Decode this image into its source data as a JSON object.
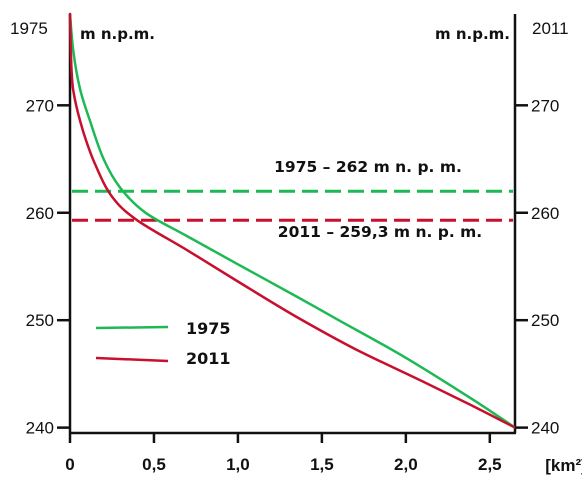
{
  "chart_data": {
    "type": "line",
    "xlabel": "[km²]",
    "x_ticks": [
      "0",
      "0,5",
      "1,0",
      "1,5",
      "2,0",
      "2,5"
    ],
    "xlim": [
      0,
      2.65
    ],
    "left_axis": {
      "year": "1975",
      "unit": "m n.p.m.",
      "ylim": [
        239.5,
        278.5
      ],
      "ticks": [
        {
          "value": 240,
          "label": "240"
        },
        {
          "value": 250,
          "label": "250"
        },
        {
          "value": 260,
          "label": "260"
        },
        {
          "value": 270,
          "label": "270"
        }
      ]
    },
    "right_axis": {
      "year": "2011",
      "unit": "m n.p.m.",
      "ticks": [
        {
          "value": 240,
          "label": "240"
        },
        {
          "value": 250,
          "label": "250"
        },
        {
          "value": 260,
          "label": "260"
        },
        {
          "value": 270,
          "label": "270"
        }
      ]
    },
    "series": [
      {
        "name": "1975",
        "color": "#1db954",
        "points": [
          [
            0,
            278.5
          ],
          [
            0.02,
            275
          ],
          [
            0.06,
            271.5
          ],
          [
            0.12,
            268.5
          ],
          [
            0.2,
            265
          ],
          [
            0.3,
            262.3
          ],
          [
            0.45,
            260.0
          ],
          [
            0.7,
            257.8
          ],
          [
            1.0,
            255.2
          ],
          [
            1.35,
            252.2
          ],
          [
            1.6,
            250.0
          ],
          [
            2.0,
            246.5
          ],
          [
            2.4,
            242.6
          ],
          [
            2.65,
            240
          ]
        ]
      },
      {
        "name": "2011",
        "color": "#c8102e",
        "points": [
          [
            0,
            278.5
          ],
          [
            0.01,
            273
          ],
          [
            0.03,
            270.5
          ],
          [
            0.08,
            267.5
          ],
          [
            0.15,
            264.5
          ],
          [
            0.25,
            261.5
          ],
          [
            0.4,
            259.3
          ],
          [
            0.7,
            256.5
          ],
          [
            1.0,
            253.6
          ],
          [
            1.35,
            250.3
          ],
          [
            1.7,
            247.3
          ],
          [
            2.1,
            244.3
          ],
          [
            2.4,
            242.0
          ],
          [
            2.65,
            240
          ]
        ]
      }
    ],
    "reference_lines": [
      {
        "value": 262,
        "color": "#1db954",
        "style": "dashed",
        "label": "1975 – 262 m n. p. m."
      },
      {
        "value": 259.3,
        "color": "#c8102e",
        "style": "dashed",
        "label": "2011 – 259,3 m n. p. m."
      }
    ],
    "legend": {
      "position": "lower-left",
      "entries": [
        {
          "name": "1975",
          "color": "#1db954"
        },
        {
          "name": "2011",
          "color": "#c8102e"
        }
      ]
    },
    "grid": false
  }
}
